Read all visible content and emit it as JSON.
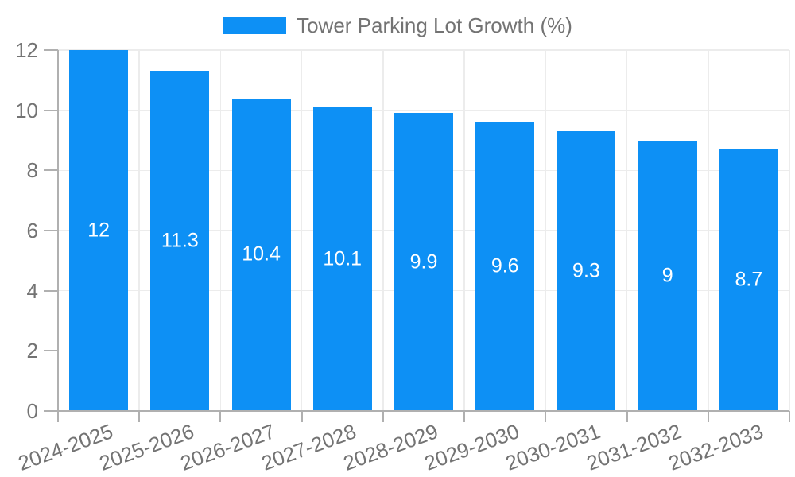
{
  "legend": {
    "label": "Tower Parking Lot Growth (%)"
  },
  "colors": {
    "bar": "#0d90f5",
    "text": "#737373",
    "grid": "#ececec",
    "axis": "#b0b0b0",
    "bar_label": "#ffffff",
    "background": "#ffffff"
  },
  "chart_data": {
    "type": "bar",
    "title": "Tower Parking Lot Growth (%)",
    "legend_position": "top",
    "legend_entries": [
      "Tower Parking Lot Growth (%)"
    ],
    "categories": [
      "2024-2025",
      "2025-2026",
      "2026-2027",
      "2027-2028",
      "2028-2029",
      "2029-2030",
      "2030-2031",
      "2031-2032",
      "2032-2033"
    ],
    "values": [
      12,
      11.3,
      10.4,
      10.1,
      9.9,
      9.6,
      9.3,
      9,
      8.7
    ],
    "bar_labels": [
      "12",
      "11.3",
      "10.4",
      "10.1",
      "9.9",
      "9.6",
      "9.3",
      "9",
      "8.7"
    ],
    "xlabel": "",
    "ylabel": "",
    "ylim": [
      0,
      12
    ],
    "yticks": [
      0,
      2,
      4,
      6,
      8,
      10,
      12
    ],
    "ytick_labels": [
      "0",
      "2",
      "4",
      "6",
      "8",
      "10",
      "12"
    ],
    "grid": true,
    "x_tick_rotation_deg": -20
  }
}
